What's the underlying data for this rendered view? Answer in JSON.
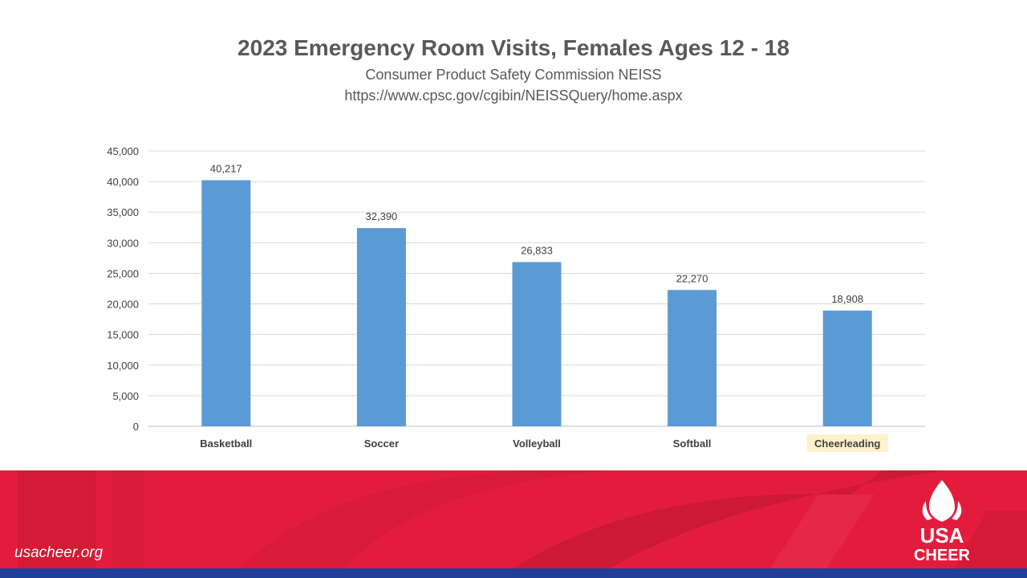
{
  "chart_data": {
    "type": "bar",
    "title": "2023 Emergency Room Visits, Females Ages 12 - 18",
    "subtitle_lines": [
      "Consumer Product Safety Commission NEISS",
      "https://www.cpsc.gov/cgibin/NEISSQuery/home.aspx"
    ],
    "categories": [
      "Basketball",
      "Soccer",
      "Volleyball",
      "Softball",
      "Cheerleading"
    ],
    "values": [
      40217,
      32390,
      26833,
      22270,
      18908
    ],
    "data_labels": [
      "40,217",
      "32,390",
      "26,833",
      "22,270",
      "18,908"
    ],
    "highlighted_category": "Cheerleading",
    "ylim": [
      0,
      45000
    ],
    "y_ticks": [
      0,
      5000,
      10000,
      15000,
      20000,
      25000,
      30000,
      35000,
      40000,
      45000
    ],
    "y_tick_labels": [
      "0",
      "5,000",
      "10,000",
      "15,000",
      "20,000",
      "25,000",
      "30,000",
      "35,000",
      "40,000",
      "45,000"
    ],
    "grid": true,
    "xlabel": "",
    "ylabel": "",
    "bar_color": "#5b9bd5",
    "highlight_color": "#fff2cc"
  },
  "footer": {
    "website": "usacheer.org",
    "logo_line1": "USA",
    "logo_line2": "CHEER",
    "band_color": "#e31c3d",
    "bottom_stripe_color": "#1f3d99"
  }
}
